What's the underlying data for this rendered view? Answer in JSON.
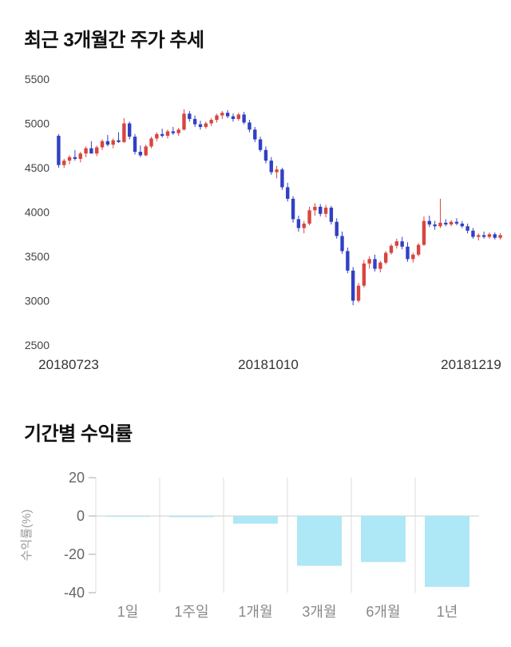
{
  "sections": {
    "price_trend": {
      "title": "최근 3개월간 주가 추세"
    },
    "returns": {
      "title": "기간별 수익률"
    }
  },
  "chart_data": [
    {
      "type": "candlestick",
      "title": "최근 3개월간 주가 추세",
      "ylim": [
        2500,
        5500
      ],
      "y_ticks": [
        5500,
        5000,
        4500,
        4000,
        3500,
        3000,
        2500
      ],
      "x_labels": [
        "20180723",
        "20181010",
        "20181219"
      ],
      "up_color": "#d8453f",
      "down_color": "#3140c4",
      "tick_color": "#444444",
      "date_color": "#333333",
      "candles": [
        [
          4860,
          4880,
          4500,
          4530
        ],
        [
          4530,
          4600,
          4500,
          4580
        ],
        [
          4580,
          4640,
          4540,
          4620
        ],
        [
          4620,
          4700,
          4580,
          4600
        ],
        [
          4600,
          4680,
          4560,
          4660
        ],
        [
          4660,
          4740,
          4620,
          4720
        ],
        [
          4720,
          4800,
          4680,
          4660
        ],
        [
          4660,
          4750,
          4630,
          4730
        ],
        [
          4730,
          4820,
          4700,
          4800
        ],
        [
          4800,
          4870,
          4740,
          4760
        ],
        [
          4760,
          4830,
          4720,
          4810
        ],
        [
          4810,
          4900,
          4780,
          4790
        ],
        [
          4790,
          5060,
          4780,
          5000
        ],
        [
          5000,
          5020,
          4820,
          4850
        ],
        [
          4850,
          4880,
          4650,
          4680
        ],
        [
          4680,
          4750,
          4620,
          4640
        ],
        [
          4640,
          4760,
          4630,
          4740
        ],
        [
          4740,
          4850,
          4720,
          4830
        ],
        [
          4830,
          4900,
          4800,
          4880
        ],
        [
          4880,
          4940,
          4840,
          4860
        ],
        [
          4860,
          4930,
          4830,
          4910
        ],
        [
          4910,
          4960,
          4870,
          4890
        ],
        [
          4890,
          4950,
          4860,
          4930
        ],
        [
          4930,
          5160,
          4920,
          5110
        ],
        [
          5110,
          5140,
          5020,
          5050
        ],
        [
          5050,
          5090,
          4960,
          4990
        ],
        [
          4990,
          5030,
          4930,
          4960
        ],
        [
          4960,
          5020,
          4940,
          5000
        ],
        [
          5000,
          5060,
          4970,
          5040
        ],
        [
          5040,
          5110,
          5010,
          5090
        ],
        [
          5090,
          5140,
          5050,
          5120
        ],
        [
          5120,
          5150,
          5060,
          5080
        ],
        [
          5080,
          5110,
          5020,
          5050
        ],
        [
          5050,
          5120,
          5030,
          5100
        ],
        [
          5100,
          5130,
          4990,
          5010
        ],
        [
          5010,
          5040,
          4900,
          4930
        ],
        [
          4930,
          4960,
          4790,
          4820
        ],
        [
          4820,
          4850,
          4680,
          4700
        ],
        [
          4700,
          4740,
          4550,
          4580
        ],
        [
          4580,
          4620,
          4420,
          4450
        ],
        [
          4450,
          4520,
          4380,
          4480
        ],
        [
          4480,
          4500,
          4250,
          4280
        ],
        [
          4280,
          4330,
          4120,
          4150
        ],
        [
          4150,
          4180,
          3880,
          3920
        ],
        [
          3920,
          3960,
          3780,
          3820
        ],
        [
          3820,
          3900,
          3760,
          3870
        ],
        [
          3870,
          4060,
          3850,
          4020
        ],
        [
          4020,
          4100,
          3960,
          4060
        ],
        [
          4060,
          4090,
          3950,
          3980
        ],
        [
          3980,
          4080,
          3940,
          4050
        ],
        [
          4050,
          4070,
          3860,
          3890
        ],
        [
          3890,
          3930,
          3700,
          3730
        ],
        [
          3730,
          3780,
          3530,
          3560
        ],
        [
          3560,
          3600,
          3310,
          3340
        ],
        [
          3340,
          3380,
          2950,
          3000
        ],
        [
          3000,
          3200,
          2980,
          3170
        ],
        [
          3170,
          3460,
          3150,
          3420
        ],
        [
          3420,
          3500,
          3360,
          3470
        ],
        [
          3470,
          3520,
          3330,
          3360
        ],
        [
          3360,
          3450,
          3320,
          3430
        ],
        [
          3430,
          3560,
          3410,
          3540
        ],
        [
          3540,
          3640,
          3520,
          3620
        ],
        [
          3620,
          3700,
          3590,
          3670
        ],
        [
          3670,
          3720,
          3580,
          3610
        ],
        [
          3610,
          3660,
          3440,
          3470
        ],
        [
          3470,
          3540,
          3430,
          3520
        ],
        [
          3520,
          3650,
          3500,
          3630
        ],
        [
          3630,
          3950,
          3620,
          3900
        ],
        [
          3900,
          3960,
          3830,
          3860
        ],
        [
          3860,
          3900,
          3800,
          3840
        ],
        [
          3840,
          4150,
          3820,
          3880
        ],
        [
          3880,
          3920,
          3840,
          3860
        ],
        [
          3860,
          3910,
          3840,
          3890
        ],
        [
          3890,
          3930,
          3850,
          3870
        ],
        [
          3870,
          3900,
          3820,
          3840
        ],
        [
          3840,
          3870,
          3760,
          3790
        ],
        [
          3790,
          3820,
          3700,
          3720
        ],
        [
          3720,
          3760,
          3680,
          3740
        ],
        [
          3740,
          3780,
          3700,
          3720
        ],
        [
          3720,
          3770,
          3700,
          3750
        ],
        [
          3750,
          3770,
          3690,
          3710
        ],
        [
          3710,
          3760,
          3690,
          3740
        ]
      ]
    },
    {
      "type": "bar",
      "title": "기간별 수익률",
      "ylabel": "수익률(%)",
      "categories": [
        "1일",
        "1주일",
        "1개월",
        "3개월",
        "6개월",
        "1년"
      ],
      "values": [
        -0.3,
        -0.6,
        -4,
        -26,
        -24,
        -37
      ],
      "ylim": [
        -40,
        20
      ],
      "y_ticks": [
        20,
        0,
        -20,
        -40
      ],
      "grid": true,
      "legend_position": "none",
      "bar_color": "#aee7f5",
      "grid_color": "#dddddd",
      "axis_color": "#cccccc",
      "tick_color": "#666666",
      "category_color": "#888888",
      "ylabel_color": "#999999"
    }
  ]
}
